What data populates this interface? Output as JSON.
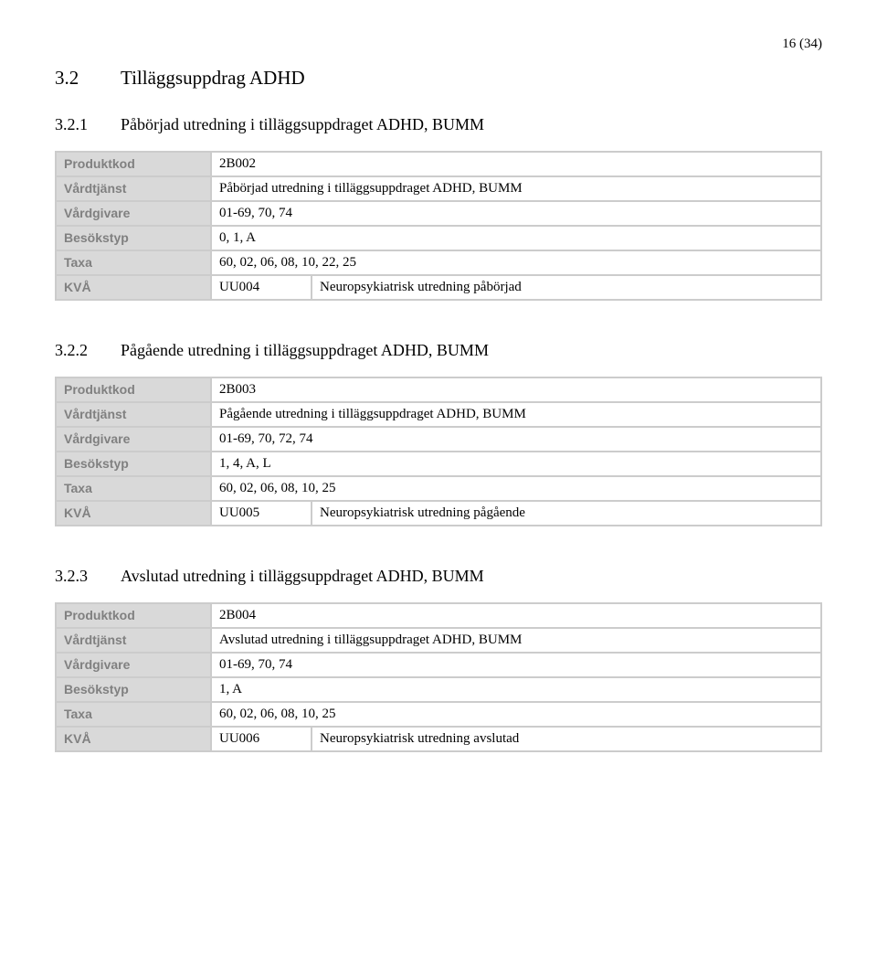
{
  "page_number": "16 (34)",
  "heading2": {
    "num": "3.2",
    "text": "Tilläggsuppdrag ADHD"
  },
  "labels": {
    "produktkod": "Produktkod",
    "vardtjanst": "Vårdtjänst",
    "vardgivare": "Vårdgivare",
    "besokstyp": "Besökstyp",
    "taxa": "Taxa",
    "kva": "KVÅ"
  },
  "sections": [
    {
      "num": "3.2.1",
      "title": "Påbörjad utredning i tilläggsuppdraget ADHD, BUMM",
      "produktkod": "2B002",
      "vardtjanst": "Påbörjad utredning i tilläggsuppdraget ADHD, BUMM",
      "vardgivare": "01-69, 70, 74",
      "besokstyp": "0, 1, A",
      "taxa": "60, 02, 06, 08, 10, 22, 25",
      "kva_code": "UU004",
      "kva_desc": "Neuropsykiatrisk utredning påbörjad"
    },
    {
      "num": "3.2.2",
      "title": "Pågående utredning i tilläggsuppdraget ADHD, BUMM",
      "produktkod": "2B003",
      "vardtjanst": "Pågående utredning i tilläggsuppdraget ADHD, BUMM",
      "vardgivare": "01-69, 70, 72, 74",
      "besokstyp": "1, 4, A, L",
      "taxa": "60, 02, 06, 08, 10, 25",
      "kva_code": "UU005",
      "kva_desc": "Neuropsykiatrisk utredning pågående"
    },
    {
      "num": "3.2.3",
      "title": "Avslutad utredning i tilläggsuppdraget ADHD, BUMM",
      "produktkod": "2B004",
      "vardtjanst": "Avslutad utredning i tilläggsuppdraget ADHD, BUMM",
      "vardgivare": "01-69, 70, 74",
      "besokstyp": "1, A",
      "taxa": "60, 02, 06, 08, 10, 25",
      "kva_code": "UU006",
      "kva_desc": "Neuropsykiatrisk utredning avslutad"
    }
  ]
}
